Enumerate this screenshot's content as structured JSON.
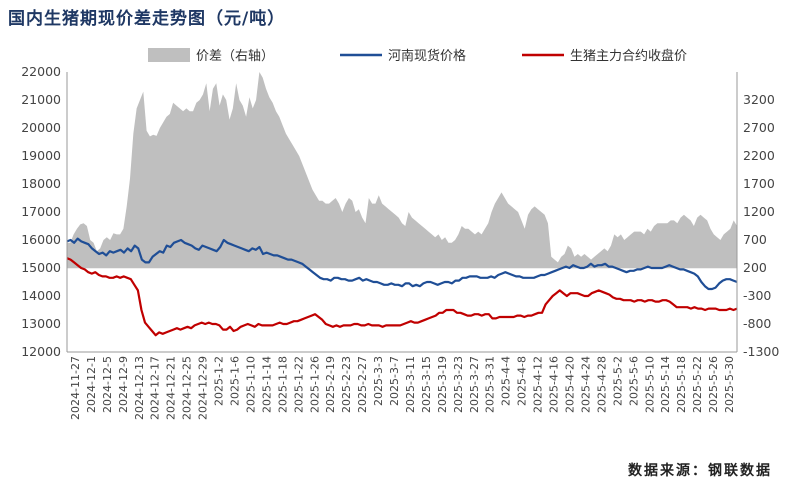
{
  "chart_data": {
    "type": "line",
    "title": "国内生猪期现价差走势图（元/吨）",
    "source": "数据来源：钢联数据",
    "legend": {
      "placement": "top",
      "items": [
        {
          "name": "价差（右轴）",
          "kind": "area",
          "color": "#bfbfbf"
        },
        {
          "name": "河南现货价格",
          "kind": "line",
          "color": "#1f4e96"
        },
        {
          "name": "生猪主力合约收盘价",
          "kind": "line",
          "color": "#c00000"
        }
      ]
    },
    "y_left": {
      "min": 12000,
      "max": 22000,
      "step": 1000,
      "ticks": [
        "12000",
        "13000",
        "14000",
        "15000",
        "16000",
        "17000",
        "18000",
        "19000",
        "20000",
        "21000",
        "22000"
      ]
    },
    "y_right": {
      "min": -1300,
      "max": 3700,
      "step": 500,
      "ticks": [
        "-1300",
        "-800",
        "-300",
        "200",
        "700",
        "1200",
        "1700",
        "2200",
        "2700",
        "3200"
      ]
    },
    "x_labels": [
      "2024-11-27",
      "2024-12-1",
      "2024-12-5",
      "2024-12-9",
      "2024-12-13",
      "2024-12-17",
      "2024-12-21",
      "2024-12-25",
      "2024-12-29",
      "2025-1-2",
      "2025-1-6",
      "2025-1-10",
      "2025-1-14",
      "2025-1-18",
      "2025-1-22",
      "2025-1-26",
      "2025-2-19",
      "2025-2-23",
      "2025-2-27",
      "2025-3-3",
      "2025-3-7",
      "2025-3-11",
      "2025-3-15",
      "2025-3-19",
      "2025-3-23",
      "2025-3-27",
      "2025-3-31",
      "2025-4-4",
      "2025-4-8",
      "2025-4-12",
      "2025-4-16",
      "2025-4-20",
      "2025-4-24",
      "2025-4-28",
      "2025-5-2",
      "2025-5-6",
      "2025-5-10",
      "2025-5-14",
      "2025-5-18",
      "2025-5-22",
      "2025-5-26",
      "2025-5-30"
    ],
    "series": [
      {
        "name": "价差（右轴）",
        "axis": "right",
        "values": [
          650,
          650,
          800,
          900,
          980,
          1000,
          950,
          700,
          650,
          500,
          550,
          700,
          750,
          700,
          820,
          800,
          800,
          900,
          1300,
          1800,
          2600,
          3050,
          3200,
          3350,
          2650,
          2550,
          2580,
          2560,
          2700,
          2800,
          2900,
          2950,
          3150,
          3100,
          3050,
          3000,
          3050,
          3000,
          3000,
          3150,
          3200,
          3300,
          3500,
          3000,
          3400,
          3500,
          3100,
          3300,
          3200,
          2850,
          3050,
          3500,
          3200,
          3100,
          2900,
          3250,
          3050,
          3200,
          3700,
          3600,
          3400,
          3250,
          3150,
          3000,
          2900,
          2750,
          2600,
          2500,
          2400,
          2300,
          2200,
          2050,
          1900,
          1750,
          1600,
          1500,
          1400,
          1400,
          1350,
          1350,
          1400,
          1450,
          1350,
          1200,
          1350,
          1450,
          1400,
          1200,
          1250,
          1100,
          1000,
          1450,
          1350,
          1350,
          1500,
          1350,
          1300,
          1250,
          1200,
          1150,
          1100,
          1000,
          950,
          1200,
          1100,
          1050,
          1000,
          950,
          900,
          850,
          800,
          750,
          800,
          700,
          750,
          650,
          650,
          700,
          800,
          950,
          900,
          900,
          850,
          800,
          850,
          800,
          900,
          1000,
          1200,
          1350,
          1450,
          1550,
          1450,
          1350,
          1300,
          1250,
          1200,
          1050,
          900,
          1150,
          1250,
          1300,
          1250,
          1200,
          1150,
          1000,
          400,
          350,
          300,
          400,
          450,
          600,
          550,
          400,
          450,
          400,
          450,
          400,
          350,
          400,
          450,
          500,
          550,
          500,
          600,
          800,
          750,
          800,
          700,
          750,
          800,
          850,
          850,
          850,
          800,
          900,
          850,
          950,
          1000,
          1000,
          1000,
          1000,
          1050,
          1050,
          1000,
          1100,
          1150,
          1100,
          1050,
          950,
          1100,
          1150,
          1100,
          1050,
          900,
          800,
          750,
          700,
          800,
          850,
          900,
          1050,
          950
        ]
      },
      {
        "name": "河南现货价格",
        "axis": "left",
        "values": [
          15950,
          16000,
          15900,
          16050,
          15950,
          15900,
          15850,
          15700,
          15600,
          15500,
          15550,
          15450,
          15600,
          15550,
          15600,
          15650,
          15550,
          15700,
          15600,
          15800,
          15700,
          15300,
          15200,
          15200,
          15400,
          15500,
          15600,
          15550,
          15800,
          15750,
          15900,
          15950,
          16000,
          15900,
          15850,
          15800,
          15700,
          15650,
          15800,
          15750,
          15700,
          15650,
          15600,
          15750,
          16000,
          15900,
          15850,
          15800,
          15750,
          15700,
          15650,
          15600,
          15700,
          15650,
          15750,
          15500,
          15550,
          15500,
          15450,
          15450,
          15400,
          15350,
          15300,
          15300,
          15250,
          15200,
          15150,
          15050,
          14950,
          14850,
          14750,
          14650,
          14600,
          14600,
          14550,
          14650,
          14650,
          14600,
          14600,
          14550,
          14550,
          14600,
          14650,
          14550,
          14600,
          14550,
          14500,
          14500,
          14450,
          14400,
          14400,
          14450,
          14400,
          14400,
          14350,
          14450,
          14450,
          14350,
          14400,
          14350,
          14450,
          14500,
          14500,
          14450,
          14400,
          14450,
          14500,
          14500,
          14450,
          14550,
          14550,
          14650,
          14650,
          14700,
          14700,
          14700,
          14650,
          14650,
          14650,
          14700,
          14650,
          14750,
          14800,
          14850,
          14800,
          14750,
          14700,
          14700,
          14650,
          14650,
          14650,
          14650,
          14700,
          14750,
          14750,
          14800,
          14850,
          14900,
          14950,
          15000,
          15050,
          15000,
          15100,
          15050,
          15000,
          15000,
          15050,
          15150,
          15050,
          15100,
          15100,
          15150,
          15050,
          15050,
          15000,
          14950,
          14900,
          14850,
          14900,
          14900,
          14950,
          14950,
          15000,
          15050,
          15000,
          15000,
          15000,
          15000,
          15050,
          15100,
          15050,
          15000,
          14950,
          14950,
          14900,
          14850,
          14800,
          14700,
          14500,
          14350,
          14250,
          14250,
          14300,
          14450,
          14550,
          14600,
          14600,
          14550,
          14500
        ]
      },
      {
        "name": "生猪主力合约收盘价",
        "axis": "left",
        "values": [
          15350,
          15300,
          15200,
          15100,
          15000,
          14950,
          14850,
          14800,
          14850,
          14750,
          14700,
          14700,
          14650,
          14650,
          14700,
          14650,
          14700,
          14650,
          14600,
          14400,
          14200,
          13500,
          13050,
          12900,
          12750,
          12600,
          12700,
          12650,
          12700,
          12750,
          12800,
          12850,
          12800,
          12850,
          12900,
          12850,
          12950,
          13000,
          13050,
          13000,
          13050,
          13000,
          13000,
          12950,
          12800,
          12800,
          12900,
          12750,
          12800,
          12900,
          12950,
          13000,
          12950,
          12900,
          13000,
          12950,
          12950,
          12950,
          12950,
          13000,
          13050,
          13000,
          13000,
          13050,
          13100,
          13100,
          13150,
          13200,
          13250,
          13300,
          13350,
          13250,
          13150,
          13000,
          12950,
          12900,
          12950,
          12900,
          12950,
          12950,
          12950,
          13000,
          13000,
          12950,
          12950,
          13000,
          12950,
          12950,
          12950,
          12900,
          12950,
          12950,
          12950,
          12950,
          12950,
          13000,
          13050,
          13100,
          13050,
          13050,
          13100,
          13150,
          13200,
          13250,
          13300,
          13400,
          13400,
          13500,
          13500,
          13500,
          13400,
          13400,
          13350,
          13300,
          13300,
          13350,
          13350,
          13300,
          13350,
          13350,
          13200,
          13200,
          13250,
          13250,
          13250,
          13250,
          13250,
          13300,
          13300,
          13250,
          13300,
          13300,
          13350,
          13400,
          13400,
          13700,
          13850,
          14000,
          14100,
          14200,
          14100,
          14000,
          14100,
          14100,
          14100,
          14050,
          14000,
          14000,
          14100,
          14150,
          14200,
          14150,
          14100,
          14050,
          13950,
          13900,
          13900,
          13850,
          13850,
          13850,
          13800,
          13850,
          13850,
          13800,
          13850,
          13850,
          13800,
          13800,
          13850,
          13850,
          13800,
          13700,
          13600,
          13600,
          13600,
          13600,
          13550,
          13600,
          13550,
          13550,
          13500,
          13550,
          13550,
          13550,
          13500,
          13500,
          13500,
          13550,
          13500,
          13550
        ]
      }
    ]
  }
}
